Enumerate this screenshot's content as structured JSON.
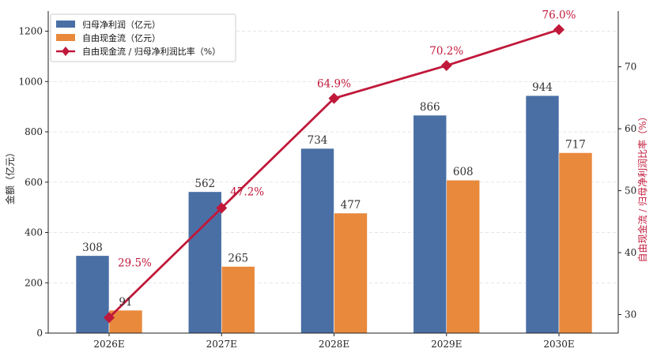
{
  "colors": {
    "net_profit": "#4a6fa5",
    "fcf": "#e8893c",
    "ratio": "#c0183a",
    "grid": "#dddddd",
    "axis": "#222222"
  },
  "chart_data": {
    "type": "bar",
    "categories": [
      "2026E",
      "2027E",
      "2028E",
      "2029E",
      "2030E"
    ],
    "series": [
      {
        "name": "归母净利润（亿元）",
        "type": "bar",
        "axis": "left",
        "color": "#4a6fa5",
        "values": [
          308,
          562,
          734,
          866,
          944
        ]
      },
      {
        "name": "自由现金流（亿元）",
        "type": "bar",
        "axis": "left",
        "color": "#e8893c",
        "values": [
          91,
          265,
          477,
          608,
          717
        ]
      },
      {
        "name": "自由现金流 / 归母净利润比率（%）",
        "type": "line",
        "axis": "right",
        "color": "#c0183a",
        "marker": "diamond",
        "values": [
          29.5,
          47.2,
          64.9,
          70.2,
          76.0
        ]
      }
    ],
    "bar_labels": {
      "net_profit": [
        "308",
        "562",
        "734",
        "866",
        "944"
      ],
      "fcf": [
        "91",
        "265",
        "477",
        "608",
        "717"
      ]
    },
    "ratio_labels": [
      "29.5%",
      "47.2%",
      "64.9%",
      "70.2%",
      "76.0%"
    ],
    "ylabel": "金额（亿元）",
    "y2label": "自由现金流 / 归母净利润比率（%）",
    "ylim": [
      0,
      1280
    ],
    "y2lim": [
      27,
      79
    ],
    "yticks": [
      0,
      200,
      400,
      600,
      800,
      1000,
      1200
    ],
    "y2ticks": [
      30,
      40,
      50,
      60,
      70
    ],
    "grid": "horizontal dashed",
    "legend_position": "top-left"
  }
}
